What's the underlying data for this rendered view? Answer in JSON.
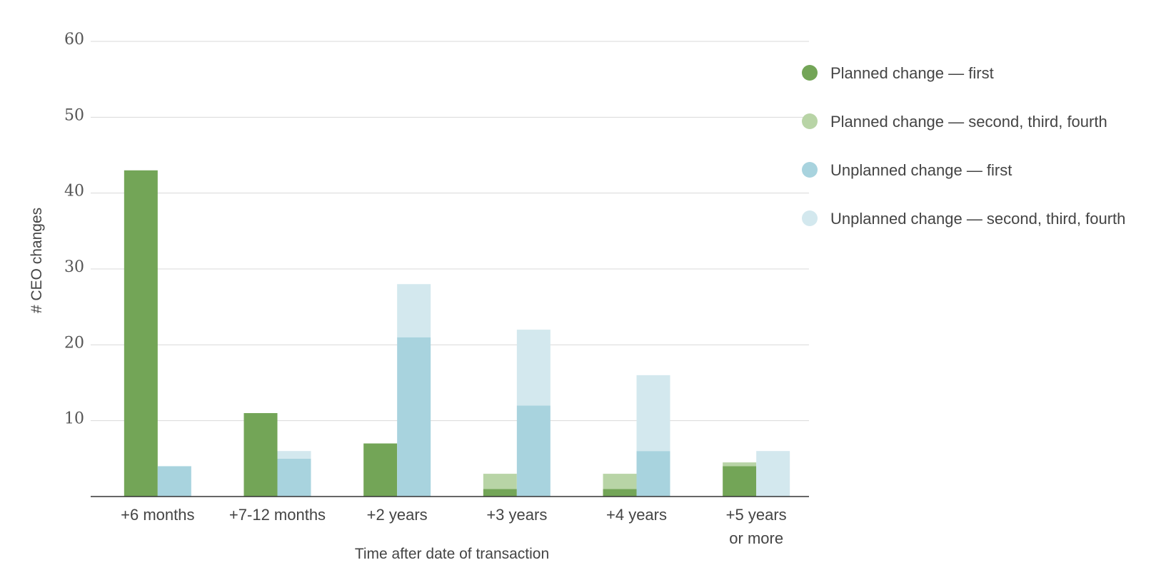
{
  "chart_data": {
    "type": "bar",
    "stacked_pairs": true,
    "title": "",
    "xlabel": "Time after date of transaction",
    "ylabel": "# CEO changes",
    "ylim": [
      0,
      60
    ],
    "yticks": [
      10,
      20,
      30,
      40,
      50,
      60
    ],
    "grid": true,
    "legend_position": "right",
    "categories": [
      [
        "+6 months"
      ],
      [
        "+7-12 months"
      ],
      [
        "+2 years"
      ],
      [
        "+3 years"
      ],
      [
        "+4 years"
      ],
      [
        "+5 years",
        "or more"
      ]
    ],
    "series": [
      {
        "name": "Planned change — first",
        "group": "planned",
        "color": "#73a557",
        "values": [
          43,
          11,
          7,
          1,
          1,
          4
        ]
      },
      {
        "name": "Planned change — second, third, fourth",
        "group": "planned",
        "color": "#b8d4a6",
        "values": [
          0,
          0,
          0,
          2,
          2,
          0.5
        ]
      },
      {
        "name": "Unplanned change — first",
        "group": "unplanned",
        "color": "#a8d3de",
        "values": [
          4,
          5,
          21,
          12,
          6,
          0
        ]
      },
      {
        "name": "Unplanned change — second, third, fourth",
        "group": "unplanned",
        "color": "#d3e8ee",
        "values": [
          0,
          1,
          7,
          10,
          10,
          6
        ]
      }
    ]
  }
}
